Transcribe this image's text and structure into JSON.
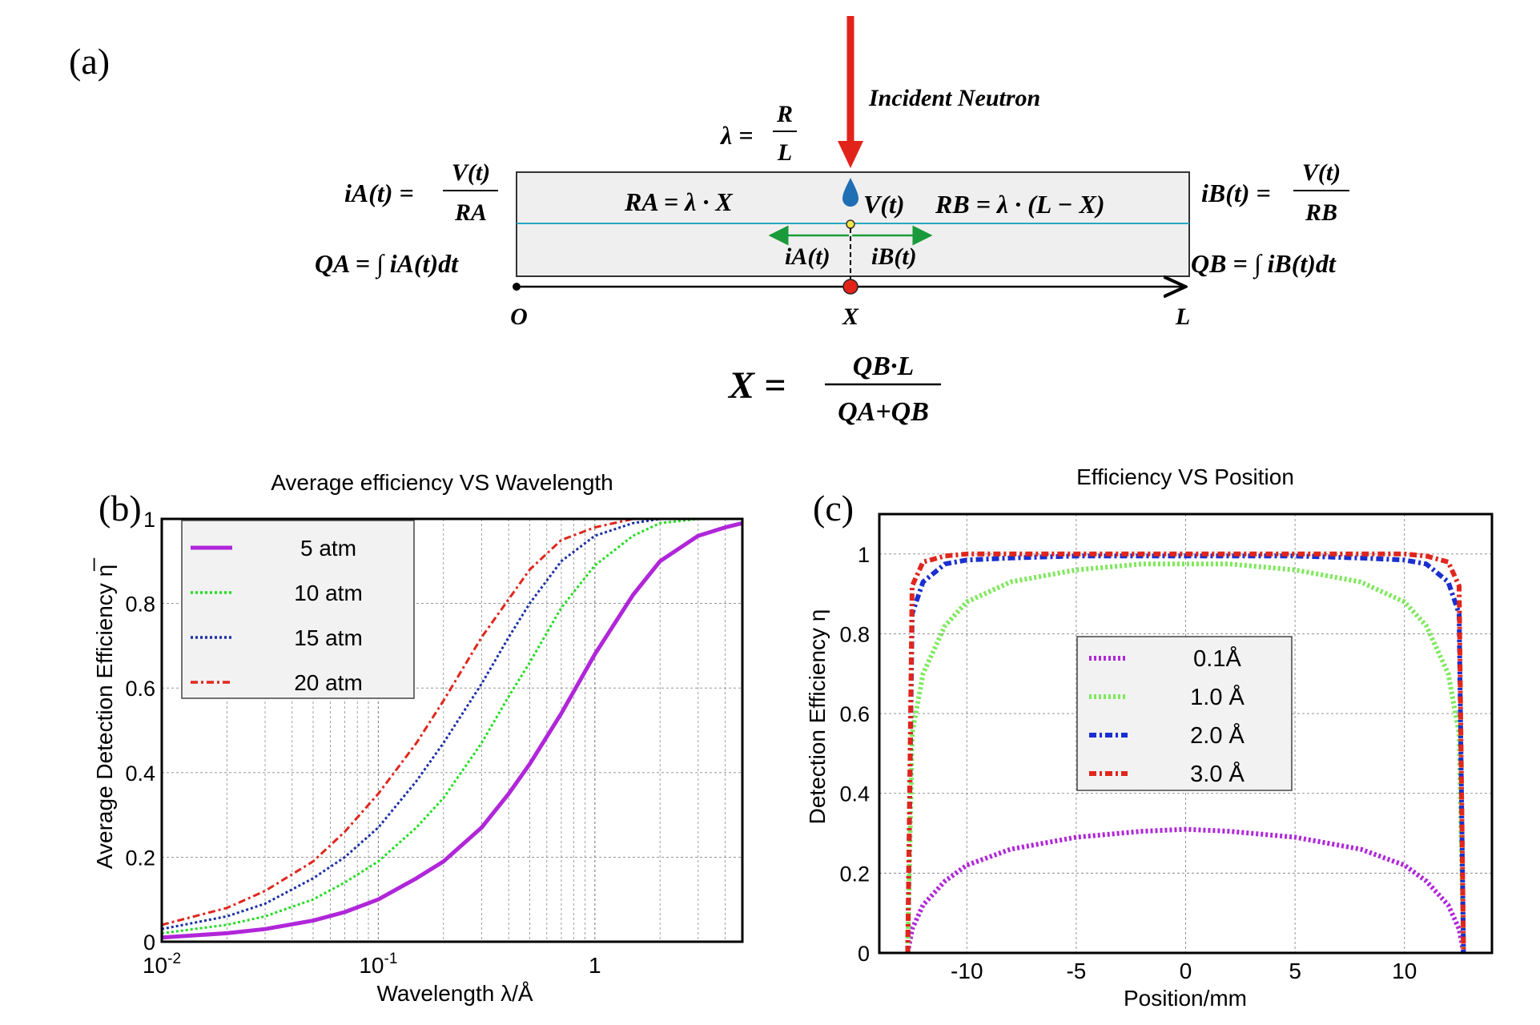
{
  "panel_labels": {
    "a": "(a)",
    "b": "(b)",
    "c": "(c)"
  },
  "diagram": {
    "incident_label": "Incident Neutron",
    "lambda_lhs": "λ =",
    "lambda_num": "R",
    "lambda_den": "L",
    "iA_lhs": "iA(t) =",
    "iA_num": "V(t)",
    "iA_den": "RA",
    "iB_lhs": "iB(t) =",
    "iB_num": "V(t)",
    "iB_den": "RB",
    "QA_eq": "QA = ∫ iA(t)dt",
    "QB_eq": "QB = ∫ iB(t)dt",
    "RA_eq": "RA = λ · X",
    "RB_eq": "RB = λ · (L − X)",
    "V_label": "V(t)",
    "iA_arrow": "iA(t)",
    "iB_arrow": "iB(t)",
    "axis_O": "O",
    "axis_X": "X",
    "axis_L": "L",
    "X_lhs": "X =",
    "X_num": "QB·L",
    "X_den": "QA+QB",
    "colors": {
      "arrow": "#e2231a",
      "wire": "#2aa6c4",
      "current": "#1a9a3a",
      "drop": "#1f6fb5",
      "box": "#efefef"
    }
  },
  "chart_data": [
    {
      "id": "b",
      "type": "line",
      "title": "Average efficiency VS Wavelength",
      "xlabel": "Wavelength λ/Å",
      "ylabel": "Average Detection Efficiency η̅",
      "xscale": "log",
      "xlim": [
        0.01,
        4.8
      ],
      "ylim": [
        0,
        1
      ],
      "xticks": [
        {
          "value": 0.01,
          "base": "10",
          "exp": "-2"
        },
        {
          "value": 0.1,
          "base": "10",
          "exp": "-1"
        },
        {
          "value": 1,
          "base": "1",
          "exp": ""
        }
      ],
      "yticks": [
        "0",
        "0.2",
        "0.4",
        "0.6",
        "0.8",
        "1"
      ],
      "legend_position": "top-left",
      "series": [
        {
          "name": "5 atm",
          "color": "#b026d9",
          "style": "solid",
          "k": 0.55
        },
        {
          "name": "10 atm",
          "color": "#22dd22",
          "style": "dotted",
          "k": 1.1
        },
        {
          "name": "15 atm",
          "color": "#1a2fa6",
          "style": "dotted",
          "k": 1.65
        },
        {
          "name": "20 atm",
          "color": "#e0261d",
          "style": "dashdot",
          "k": 2.2
        }
      ],
      "x": [
        0.01,
        0.02,
        0.03,
        0.05,
        0.07,
        0.1,
        0.15,
        0.2,
        0.3,
        0.4,
        0.5,
        0.7,
        1.0,
        1.5,
        2.0,
        3.0,
        4.0,
        4.8
      ],
      "values": {
        "5 atm": [
          0.01,
          0.02,
          0.03,
          0.05,
          0.07,
          0.1,
          0.15,
          0.19,
          0.27,
          0.35,
          0.42,
          0.54,
          0.68,
          0.82,
          0.9,
          0.96,
          0.98,
          0.99
        ],
        "10 atm": [
          0.02,
          0.04,
          0.06,
          0.1,
          0.14,
          0.19,
          0.27,
          0.34,
          0.47,
          0.58,
          0.66,
          0.79,
          0.89,
          0.96,
          0.99,
          1.0,
          1.0,
          1.0
        ],
        "15 atm": [
          0.03,
          0.06,
          0.09,
          0.15,
          0.2,
          0.27,
          0.38,
          0.47,
          0.61,
          0.72,
          0.8,
          0.9,
          0.96,
          0.99,
          1.0,
          1.0,
          1.0,
          1.0
        ],
        "20 atm": [
          0.04,
          0.08,
          0.12,
          0.19,
          0.26,
          0.35,
          0.47,
          0.57,
          0.72,
          0.81,
          0.88,
          0.95,
          0.98,
          1.0,
          1.0,
          1.0,
          1.0,
          1.0
        ]
      }
    },
    {
      "id": "c",
      "type": "line",
      "title": "Efficiency VS Position",
      "xlabel": "Position/mm",
      "ylabel": "Detection Efficiency η",
      "xlim": [
        -14,
        14
      ],
      "ylim": [
        0,
        1.1
      ],
      "xticks": [
        "-10",
        "-5",
        "0",
        "5",
        "10"
      ],
      "xtick_values": [
        -10,
        -5,
        0,
        5,
        10
      ],
      "yticks": [
        "0",
        "0.2",
        "0.4",
        "0.6",
        "0.8",
        "1"
      ],
      "ytick_values": [
        0,
        0.2,
        0.4,
        0.6,
        0.8,
        1
      ],
      "legend_position": "center-right",
      "half_width": 12.7,
      "series": [
        {
          "name": "0.1Å",
          "color": "#b026d9",
          "style": "dotted",
          "peak": 0.31,
          "tau": 0.0
        },
        {
          "name": "1.0 Å",
          "color": "#7ee85c",
          "style": "dotted",
          "peak": 0.975,
          "tau": 0.0
        },
        {
          "name": "2.0 Å",
          "color": "#1a2fcf",
          "style": "dashdot",
          "peak": 0.995,
          "tau": 0.0
        },
        {
          "name": "3.0 Å",
          "color": "#e0261d",
          "style": "dashdot",
          "peak": 1.0,
          "tau": 0.0
        }
      ],
      "x": [
        -12.7,
        -12.5,
        -12,
        -11,
        -10,
        -8,
        -5,
        -2,
        0,
        2,
        5,
        8,
        10,
        11,
        12,
        12.5,
        12.7
      ],
      "values": {
        "0.1Å": [
          0.0,
          0.06,
          0.12,
          0.18,
          0.22,
          0.26,
          0.29,
          0.305,
          0.31,
          0.305,
          0.29,
          0.26,
          0.22,
          0.18,
          0.12,
          0.06,
          0.0
        ],
        "1.0 Å": [
          0.0,
          0.55,
          0.7,
          0.82,
          0.88,
          0.93,
          0.96,
          0.975,
          0.975,
          0.975,
          0.96,
          0.93,
          0.88,
          0.82,
          0.7,
          0.55,
          0.0
        ],
        "2.0 Å": [
          0.0,
          0.85,
          0.93,
          0.975,
          0.985,
          0.99,
          0.995,
          0.995,
          0.995,
          0.995,
          0.995,
          0.99,
          0.985,
          0.975,
          0.93,
          0.85,
          0.0
        ],
        "3.0 Å": [
          0.0,
          0.92,
          0.98,
          0.995,
          1.0,
          1.0,
          1.0,
          1.0,
          1.0,
          1.0,
          1.0,
          1.0,
          1.0,
          0.995,
          0.98,
          0.92,
          0.0
        ]
      }
    }
  ]
}
